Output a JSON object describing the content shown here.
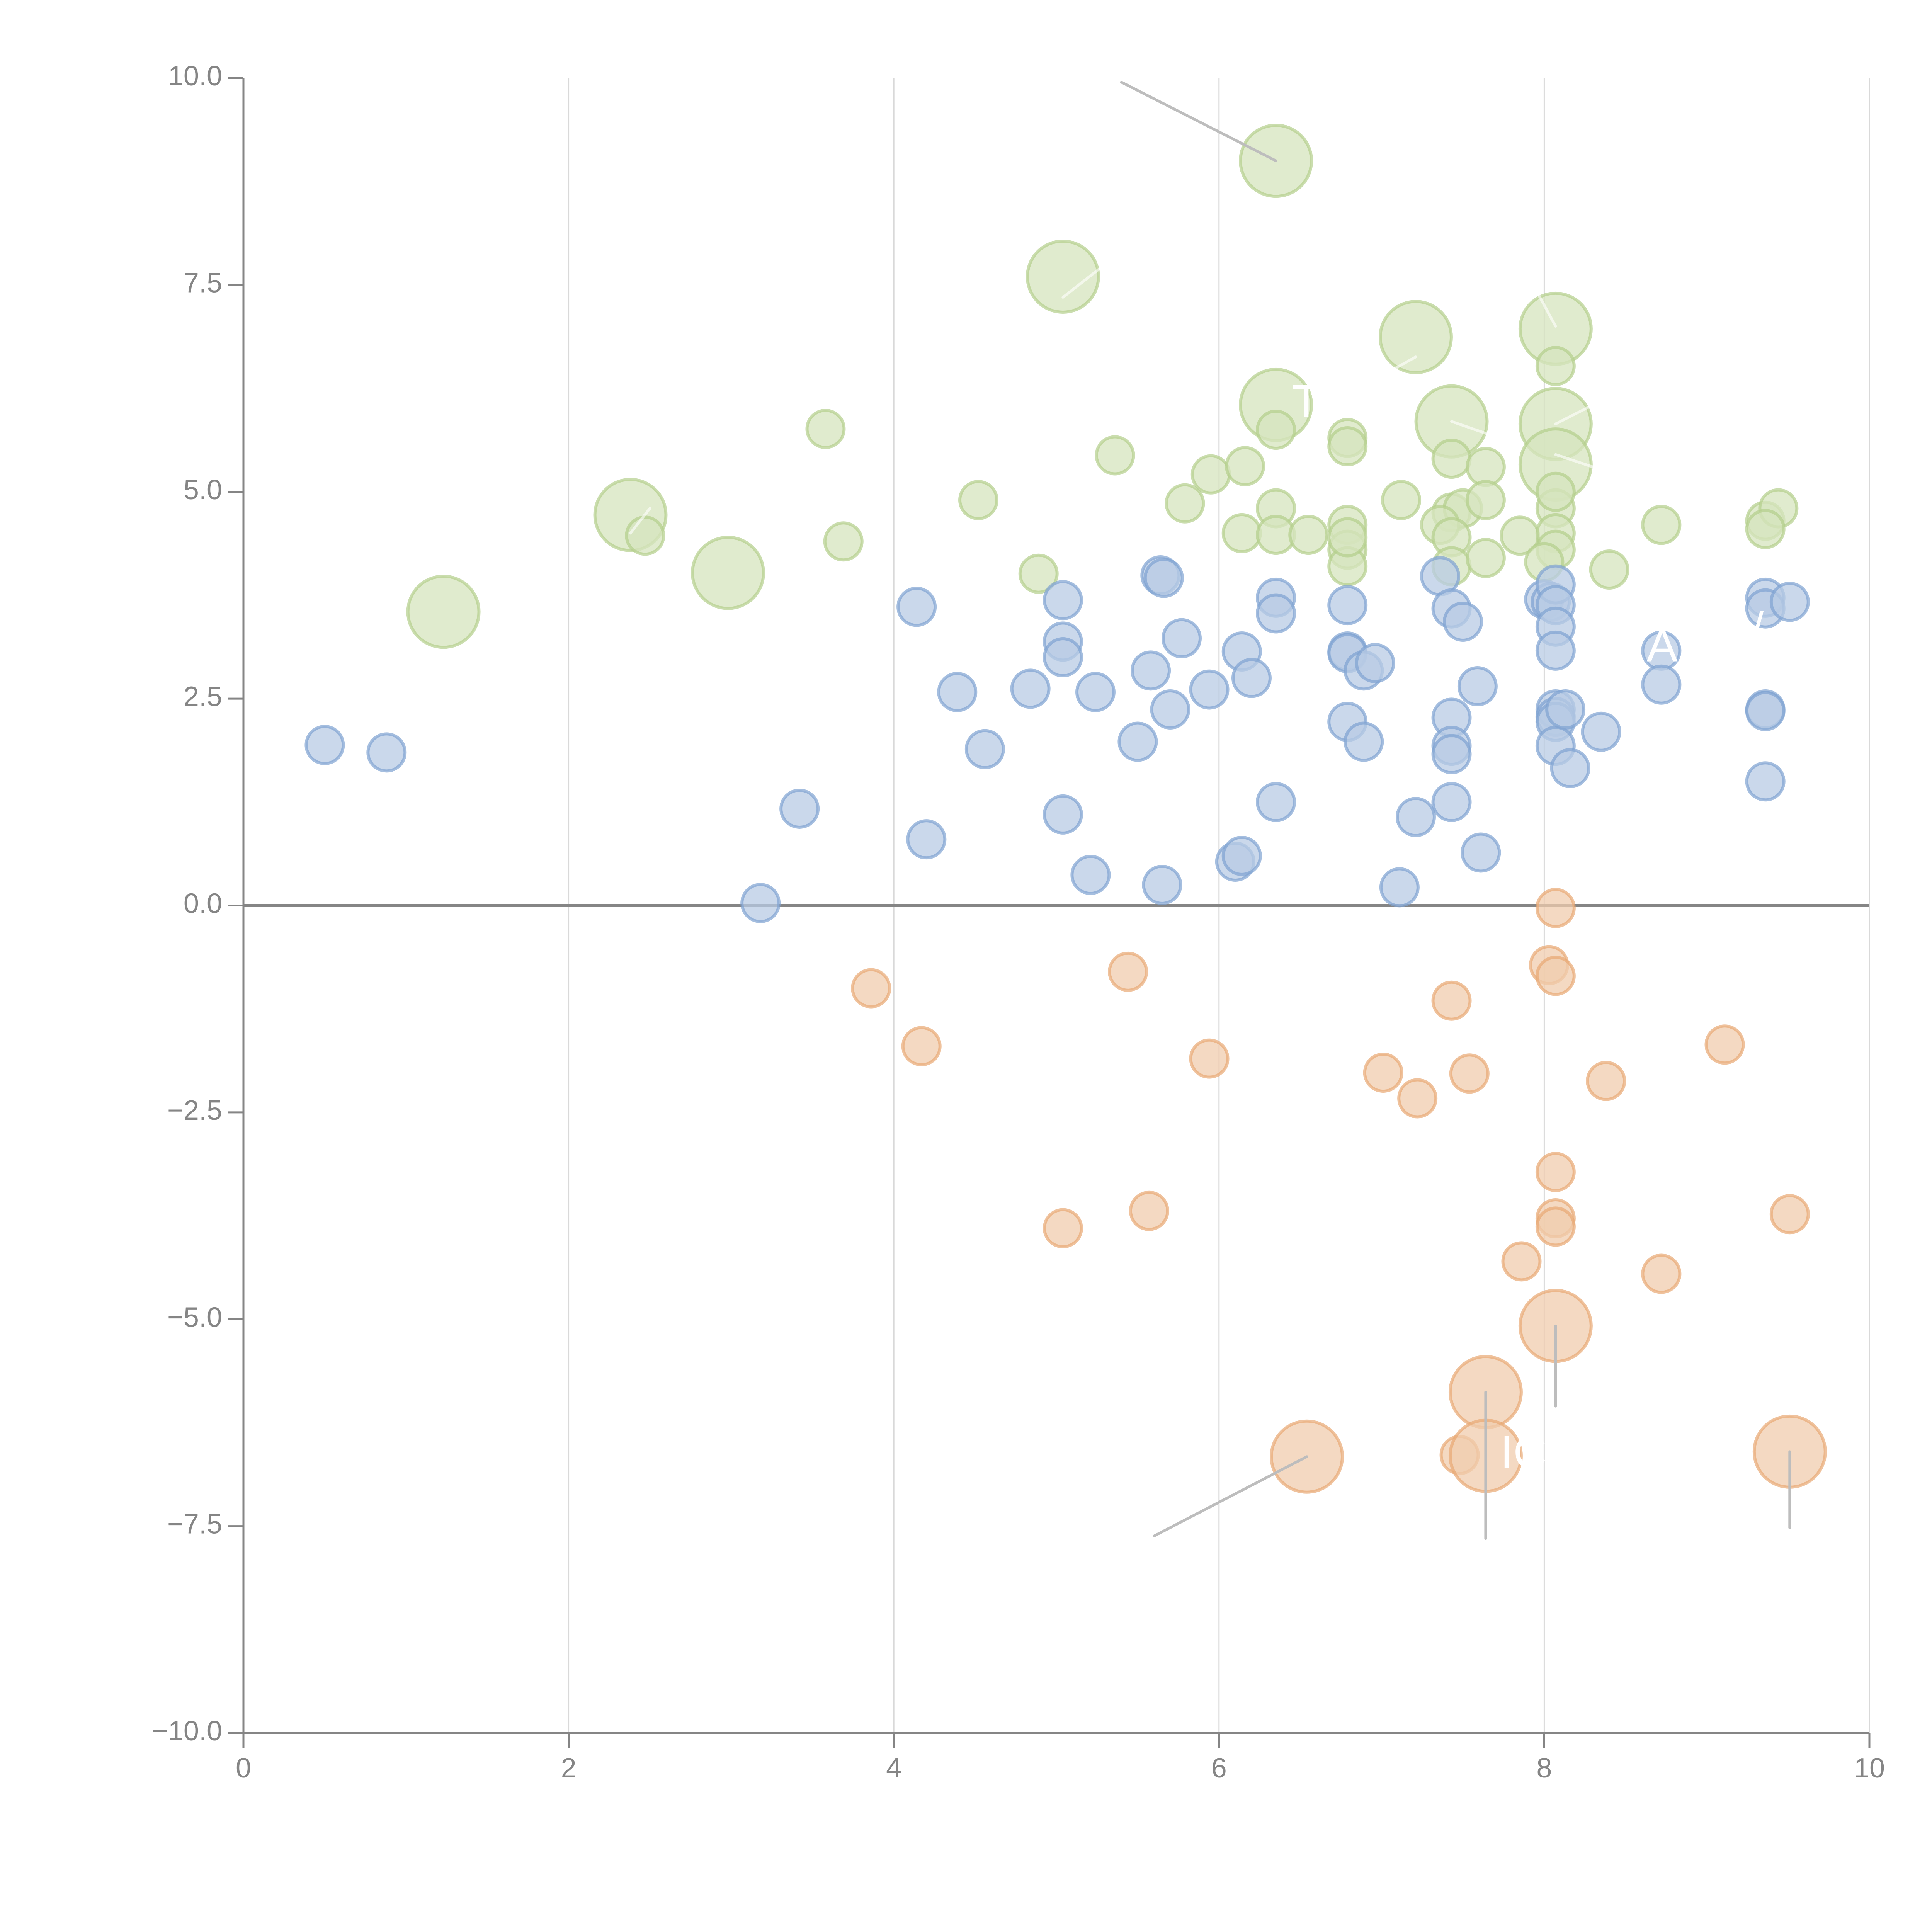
{
  "chart_data": {
    "type": "scatter",
    "subtype": "bubble",
    "title": "",
    "xlabel": "",
    "ylabel": "",
    "xlim": [
      0,
      10
    ],
    "ylim": [
      -10,
      10
    ],
    "x_ticks": [
      0,
      2,
      4,
      6,
      8,
      10
    ],
    "x_tick_labels": [
      "0",
      "2",
      "4",
      "6",
      "8",
      "10"
    ],
    "y_ticks": [
      10,
      7.5,
      5,
      2.5,
      0,
      -2.5,
      -5,
      -7.5,
      -10
    ],
    "y_tick_labels": [
      "10.0",
      "7.5",
      "5.0",
      "2.5",
      "0.0",
      "−2.5",
      "−5.0",
      "−7.5",
      "−10.0"
    ],
    "grid": "vertical",
    "zero_line": true,
    "legend": "none",
    "colors": {
      "green_fill": "#d6e4bd",
      "green_stroke": "#b3cf8b",
      "blue_fill": "#b8cbe4",
      "blue_stroke": "#7fa2d2",
      "orange_fill": "#f0ccad",
      "orange_stroke": "#e8a874",
      "axis": "#858585",
      "grid": "#d9d9d9",
      "leader": "#bdbdbd"
    },
    "series": [
      {
        "name": "green",
        "color_key": "green",
        "points": [
          {
            "x": 6.35,
            "y": 9.0,
            "s": 3
          },
          {
            "x": 5.04,
            "y": 7.6,
            "s": 3
          },
          {
            "x": 7.21,
            "y": 6.87,
            "s": 3
          },
          {
            "x": 8.07,
            "y": 6.97,
            "s": 3
          },
          {
            "x": 6.35,
            "y": 6.05,
            "s": 3
          },
          {
            "x": 7.43,
            "y": 5.85,
            "s": 3
          },
          {
            "x": 8.07,
            "y": 5.82,
            "s": 3
          },
          {
            "x": 8.07,
            "y": 5.33,
            "s": 3
          },
          {
            "x": 2.38,
            "y": 4.72,
            "s": 3
          },
          {
            "x": 2.98,
            "y": 4.02,
            "s": 3
          },
          {
            "x": 1.23,
            "y": 3.55,
            "s": 3
          },
          {
            "x": 8.07,
            "y": 6.52,
            "s": 1
          },
          {
            "x": 3.58,
            "y": 5.76,
            "s": 1
          },
          {
            "x": 5.36,
            "y": 5.44,
            "s": 1
          },
          {
            "x": 5.95,
            "y": 5.21,
            "s": 1
          },
          {
            "x": 6.16,
            "y": 5.31,
            "s": 1
          },
          {
            "x": 6.35,
            "y": 5.75,
            "s": 1
          },
          {
            "x": 6.79,
            "y": 5.65,
            "s": 1
          },
          {
            "x": 6.79,
            "y": 5.55,
            "s": 1
          },
          {
            "x": 7.43,
            "y": 5.4,
            "s": 1
          },
          {
            "x": 7.64,
            "y": 5.3,
            "s": 1
          },
          {
            "x": 4.52,
            "y": 4.9,
            "s": 1
          },
          {
            "x": 5.79,
            "y": 4.86,
            "s": 1
          },
          {
            "x": 6.35,
            "y": 4.8,
            "s": 1
          },
          {
            "x": 6.79,
            "y": 4.6,
            "s": 1
          },
          {
            "x": 7.12,
            "y": 4.9,
            "s": 1
          },
          {
            "x": 7.43,
            "y": 4.75,
            "s": 1
          },
          {
            "x": 7.5,
            "y": 4.8,
            "s": 1
          },
          {
            "x": 7.64,
            "y": 4.9,
            "s": 1
          },
          {
            "x": 8.07,
            "y": 4.8,
            "s": 1
          },
          {
            "x": 8.07,
            "y": 5.0,
            "s": 1
          },
          {
            "x": 8.72,
            "y": 4.6,
            "s": 1
          },
          {
            "x": 9.36,
            "y": 4.65,
            "s": 1
          },
          {
            "x": 9.44,
            "y": 4.8,
            "s": 1
          },
          {
            "x": 9.36,
            "y": 4.55,
            "s": 1
          },
          {
            "x": 2.47,
            "y": 4.47,
            "s": 1
          },
          {
            "x": 3.69,
            "y": 4.4,
            "s": 1
          },
          {
            "x": 4.89,
            "y": 4.01,
            "s": 1
          },
          {
            "x": 6.14,
            "y": 4.5,
            "s": 1
          },
          {
            "x": 6.35,
            "y": 4.48,
            "s": 1
          },
          {
            "x": 6.55,
            "y": 4.48,
            "s": 1
          },
          {
            "x": 6.79,
            "y": 4.3,
            "s": 1
          },
          {
            "x": 6.79,
            "y": 4.1,
            "s": 1
          },
          {
            "x": 6.79,
            "y": 4.45,
            "s": 1
          },
          {
            "x": 7.36,
            "y": 4.6,
            "s": 1
          },
          {
            "x": 7.43,
            "y": 4.45,
            "s": 1
          },
          {
            "x": 7.43,
            "y": 4.1,
            "s": 1
          },
          {
            "x": 7.64,
            "y": 4.2,
            "s": 1
          },
          {
            "x": 7.85,
            "y": 4.47,
            "s": 1
          },
          {
            "x": 8.07,
            "y": 4.5,
            "s": 1
          },
          {
            "x": 8.07,
            "y": 4.3,
            "s": 1
          },
          {
            "x": 8.0,
            "y": 4.15,
            "s": 1
          },
          {
            "x": 8.4,
            "y": 4.06,
            "s": 1
          }
        ]
      },
      {
        "name": "blue",
        "color_key": "blue",
        "points": [
          {
            "x": 0.5,
            "y": 1.94,
            "s": 1
          },
          {
            "x": 0.88,
            "y": 1.85,
            "s": 1
          },
          {
            "x": 3.18,
            "y": 0.03,
            "s": 1
          },
          {
            "x": 3.42,
            "y": 1.17,
            "s": 1
          },
          {
            "x": 4.14,
            "y": 3.61,
            "s": 1
          },
          {
            "x": 4.2,
            "y": 0.8,
            "s": 1
          },
          {
            "x": 4.39,
            "y": 2.58,
            "s": 1
          },
          {
            "x": 4.56,
            "y": 1.89,
            "s": 1
          },
          {
            "x": 4.84,
            "y": 2.62,
            "s": 1
          },
          {
            "x": 5.04,
            "y": 3.69,
            "s": 1
          },
          {
            "x": 5.04,
            "y": 3.19,
            "s": 1
          },
          {
            "x": 5.04,
            "y": 3.0,
            "s": 1
          },
          {
            "x": 5.04,
            "y": 1.1,
            "s": 1
          },
          {
            "x": 5.21,
            "y": 0.37,
            "s": 1
          },
          {
            "x": 5.24,
            "y": 2.58,
            "s": 1
          },
          {
            "x": 5.5,
            "y": 1.98,
            "s": 1
          },
          {
            "x": 5.58,
            "y": 2.84,
            "s": 1
          },
          {
            "x": 5.64,
            "y": 3.99,
            "s": 1
          },
          {
            "x": 5.66,
            "y": 3.96,
            "s": 1
          },
          {
            "x": 5.65,
            "y": 0.25,
            "s": 1
          },
          {
            "x": 5.7,
            "y": 2.37,
            "s": 1
          },
          {
            "x": 5.77,
            "y": 3.23,
            "s": 1
          },
          {
            "x": 5.94,
            "y": 2.61,
            "s": 1
          },
          {
            "x": 6.1,
            "y": 0.53,
            "s": 1
          },
          {
            "x": 6.14,
            "y": 0.6,
            "s": 1
          },
          {
            "x": 6.14,
            "y": 3.07,
            "s": 1
          },
          {
            "x": 6.2,
            "y": 2.75,
            "s": 1
          },
          {
            "x": 6.35,
            "y": 3.72,
            "s": 1
          },
          {
            "x": 6.35,
            "y": 3.53,
            "s": 1
          },
          {
            "x": 6.35,
            "y": 1.25,
            "s": 1
          },
          {
            "x": 6.79,
            "y": 3.63,
            "s": 1
          },
          {
            "x": 6.79,
            "y": 3.07,
            "s": 1
          },
          {
            "x": 6.79,
            "y": 3.05,
            "s": 1
          },
          {
            "x": 6.79,
            "y": 2.22,
            "s": 1
          },
          {
            "x": 6.89,
            "y": 1.98,
            "s": 1
          },
          {
            "x": 6.89,
            "y": 2.84,
            "s": 1
          },
          {
            "x": 6.96,
            "y": 2.93,
            "s": 1
          },
          {
            "x": 7.11,
            "y": 0.22,
            "s": 1
          },
          {
            "x": 7.21,
            "y": 1.07,
            "s": 1
          },
          {
            "x": 7.36,
            "y": 3.98,
            "s": 1
          },
          {
            "x": 7.43,
            "y": 3.59,
            "s": 1
          },
          {
            "x": 7.5,
            "y": 3.43,
            "s": 1
          },
          {
            "x": 7.43,
            "y": 2.27,
            "s": 1
          },
          {
            "x": 7.43,
            "y": 1.93,
            "s": 1
          },
          {
            "x": 7.43,
            "y": 1.83,
            "s": 1
          },
          {
            "x": 7.43,
            "y": 1.25,
            "s": 1
          },
          {
            "x": 7.59,
            "y": 2.65,
            "s": 1
          },
          {
            "x": 7.61,
            "y": 0.64,
            "s": 1
          },
          {
            "x": 8.0,
            "y": 3.7,
            "s": 1
          },
          {
            "x": 8.04,
            "y": 3.67,
            "s": 1
          },
          {
            "x": 8.07,
            "y": 3.88,
            "s": 1
          },
          {
            "x": 8.07,
            "y": 3.63,
            "s": 1
          },
          {
            "x": 8.07,
            "y": 3.37,
            "s": 1
          },
          {
            "x": 8.07,
            "y": 3.08,
            "s": 1
          },
          {
            "x": 8.07,
            "y": 2.37,
            "s": 1
          },
          {
            "x": 8.07,
            "y": 2.28,
            "s": 1
          },
          {
            "x": 8.07,
            "y": 2.22,
            "s": 1
          },
          {
            "x": 8.07,
            "y": 1.93,
            "s": 1
          },
          {
            "x": 8.13,
            "y": 2.37,
            "s": 1
          },
          {
            "x": 8.16,
            "y": 1.66,
            "s": 1
          },
          {
            "x": 8.35,
            "y": 2.1,
            "s": 1
          },
          {
            "x": 8.72,
            "y": 3.08,
            "s": 1
          },
          {
            "x": 8.72,
            "y": 2.67,
            "s": 1
          },
          {
            "x": 9.36,
            "y": 3.72,
            "s": 1
          },
          {
            "x": 9.36,
            "y": 3.59,
            "s": 1
          },
          {
            "x": 9.51,
            "y": 3.67,
            "s": 1
          },
          {
            "x": 9.36,
            "y": 2.37,
            "s": 1
          },
          {
            "x": 9.36,
            "y": 2.35,
            "s": 1
          },
          {
            "x": 9.36,
            "y": 1.5,
            "s": 1
          }
        ]
      },
      {
        "name": "orange",
        "color_key": "orange",
        "points": [
          {
            "x": 3.86,
            "y": -1.0,
            "s": 1
          },
          {
            "x": 4.17,
            "y": -1.7,
            "s": 1
          },
          {
            "x": 5.44,
            "y": -0.8,
            "s": 1
          },
          {
            "x": 5.94,
            "y": -1.85,
            "s": 1
          },
          {
            "x": 5.04,
            "y": -3.9,
            "s": 1
          },
          {
            "x": 5.57,
            "y": -3.69,
            "s": 1
          },
          {
            "x": 7.01,
            "y": -2.02,
            "s": 1
          },
          {
            "x": 7.22,
            "y": -2.33,
            "s": 1
          },
          {
            "x": 7.43,
            "y": -1.15,
            "s": 1
          },
          {
            "x": 7.54,
            "y": -2.03,
            "s": 1
          },
          {
            "x": 8.07,
            "y": -0.03,
            "s": 1
          },
          {
            "x": 8.03,
            "y": -0.72,
            "s": 1
          },
          {
            "x": 8.07,
            "y": -0.85,
            "s": 1
          },
          {
            "x": 8.38,
            "y": -2.12,
            "s": 1
          },
          {
            "x": 9.11,
            "y": -1.68,
            "s": 1
          },
          {
            "x": 8.07,
            "y": -3.22,
            "s": 1
          },
          {
            "x": 8.07,
            "y": -3.78,
            "s": 1
          },
          {
            "x": 8.07,
            "y": -3.88,
            "s": 1
          },
          {
            "x": 7.86,
            "y": -4.3,
            "s": 1
          },
          {
            "x": 8.72,
            "y": -4.45,
            "s": 1
          },
          {
            "x": 9.51,
            "y": -3.73,
            "s": 1
          },
          {
            "x": 7.48,
            "y": -6.64,
            "s": 1
          },
          {
            "x": 8.07,
            "y": -5.08,
            "s": 3
          },
          {
            "x": 7.64,
            "y": -5.88,
            "s": 3
          },
          {
            "x": 6.54,
            "y": -6.66,
            "s": 3
          },
          {
            "x": 7.64,
            "y": -6.65,
            "s": 3
          },
          {
            "x": 9.51,
            "y": -6.6,
            "s": 3
          }
        ]
      }
    ],
    "leader_lines": [
      {
        "from": [
          5.4,
          9.95
        ],
        "to": [
          6.35,
          9.0
        ],
        "color_key": "leader"
      },
      {
        "from": [
          5.04,
          7.35
        ],
        "to": [
          5.3,
          7.75
        ],
        "color_key": "white"
      },
      {
        "from": [
          7.21,
          6.63
        ],
        "to": [
          7.0,
          6.4
        ],
        "color_key": "white"
      },
      {
        "from": [
          8.07,
          7.0
        ],
        "to": [
          7.96,
          7.4
        ],
        "color_key": "white"
      },
      {
        "from": [
          8.07,
          5.82
        ],
        "to": [
          8.35,
          6.1
        ],
        "color_key": "white"
      },
      {
        "from": [
          7.43,
          5.85
        ],
        "to": [
          7.65,
          5.7
        ],
        "color_key": "white"
      },
      {
        "from": [
          8.07,
          5.45
        ],
        "to": [
          8.3,
          5.3
        ],
        "color_key": "white"
      },
      {
        "from": [
          2.38,
          4.5
        ],
        "to": [
          2.5,
          4.8
        ],
        "color_key": "white"
      },
      {
        "from": [
          8.07,
          -5.08
        ],
        "to": [
          8.07,
          -6.05
        ],
        "color_key": "leader"
      },
      {
        "from": [
          7.64,
          -5.88
        ],
        "to": [
          7.64,
          -7.65
        ],
        "color_key": "leader"
      },
      {
        "from": [
          6.54,
          -6.66
        ],
        "to": [
          5.6,
          -7.62
        ],
        "color_key": "leader"
      },
      {
        "from": [
          9.51,
          -6.6
        ],
        "to": [
          9.51,
          -7.52
        ],
        "color_key": "leader"
      }
    ],
    "annotations": [
      {
        "text": "TW",
        "x": 6.45,
        "y": 6.05
      },
      {
        "text": "IC",
        "x": 7.73,
        "y": -6.65
      },
      {
        "text": "A",
        "x": 8.63,
        "y": 3.1
      },
      {
        "text": "/",
        "x": 9.27,
        "y": 3.3
      }
    ]
  }
}
